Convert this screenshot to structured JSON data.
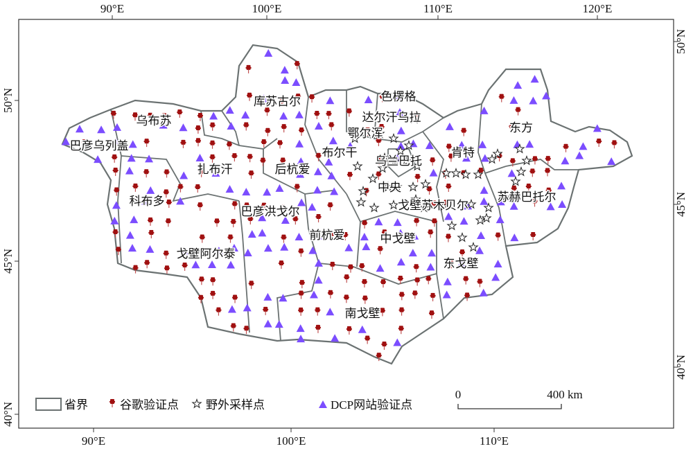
{
  "axes": {
    "top": [
      "90°E",
      "100°E",
      "110°E",
      "120°E"
    ],
    "bottom": [
      "90°E",
      "100°E",
      "110°E"
    ],
    "left": [
      "50°N",
      "45°N",
      "40°N"
    ],
    "right": [
      "50°N",
      "45°N",
      "40°N"
    ]
  },
  "provinces": [
    "色楞格",
    "库苏古尔",
    "乌布苏",
    "达尔汗乌拉",
    "鄂尔浑",
    "东方",
    "巴彦乌列盖",
    "布尔干",
    "肯特",
    "扎布汗",
    "后杭爱",
    "乌兰巴托",
    "中央",
    "科布多",
    "苏赫巴托尔",
    "巴彦洪戈尔",
    "戈壁苏木贝尔",
    "前杭爱",
    "中戈壁",
    "戈壁阿尔泰",
    "东戈壁",
    "南戈壁"
  ],
  "legend": {
    "items": [
      {
        "label": "省界",
        "icon": "boundary-box"
      },
      {
        "label": "谷歌验证点",
        "icon": "pushpin",
        "color": "#a01010"
      },
      {
        "label": "野外采样点",
        "icon": "star-outline"
      },
      {
        "label": "DCP网站验证点",
        "icon": "triangle",
        "color": "#7b4dff"
      }
    ]
  },
  "scale_bar": {
    "start": "0",
    "end": "400 km"
  },
  "colors": {
    "boundary": "#6b7272",
    "pin": "#a01010",
    "triangle": "#7b4dff"
  }
}
